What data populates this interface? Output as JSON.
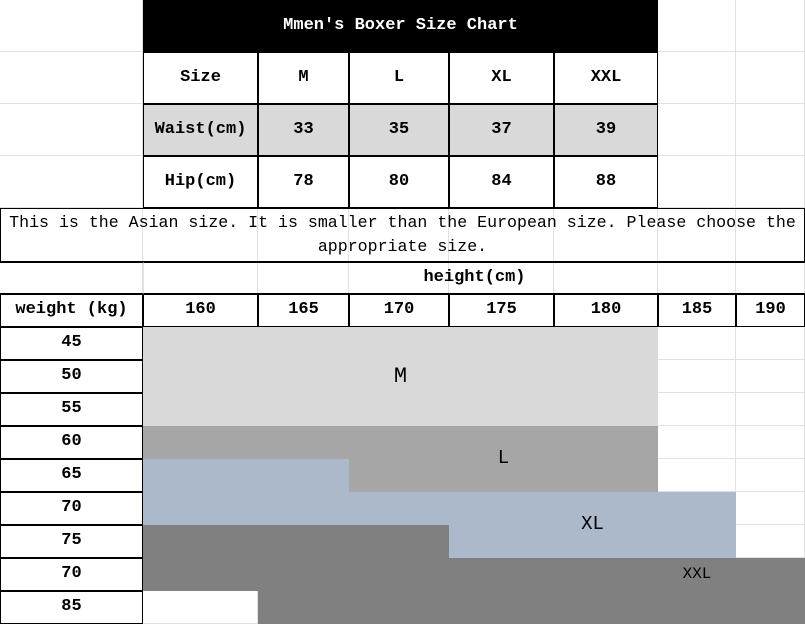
{
  "title": "Mmen's Boxer Size Chart",
  "size_table": {
    "header": [
      "Size",
      "M",
      "L",
      "XL",
      "XXL"
    ],
    "rows": [
      {
        "label": "Waist(cm)",
        "values": [
          "33",
          "35",
          "37",
          "39"
        ]
      },
      {
        "label": "Hip(cm)",
        "values": [
          "78",
          "80",
          "84",
          "88"
        ]
      }
    ]
  },
  "note": "This is the Asian size. It is smaller than the European size. Please choose the appropriate size.",
  "fit_chart": {
    "height_label": "height(cm)",
    "weight_label": "weight (kg)",
    "heights": [
      "160",
      "165",
      "170",
      "175",
      "180",
      "185",
      "190"
    ],
    "weights": [
      "45",
      "50",
      "55",
      "60",
      "65",
      "70",
      "75",
      "70",
      "85"
    ],
    "regions": [
      {
        "size": "M",
        "color": "#d9d9d9"
      },
      {
        "size": "L",
        "color": "#a6a6a6"
      },
      {
        "size": "XL",
        "color": "#acb9ca"
      },
      {
        "size": "XXL",
        "color": "#808080"
      }
    ]
  },
  "colors": {
    "title_bg": "#000000",
    "title_text": "#ffffff",
    "waist_row_bg": "#d9d9d9"
  }
}
